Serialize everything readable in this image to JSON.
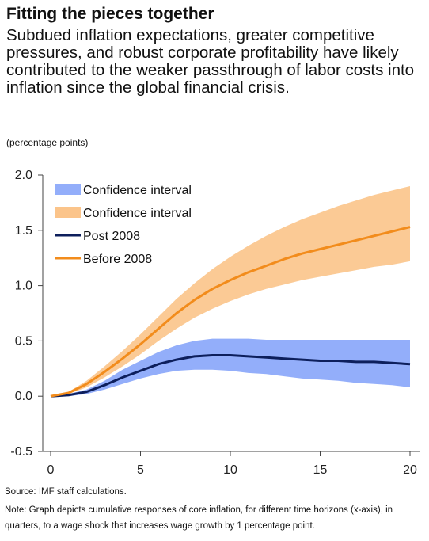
{
  "header": {
    "title": "Fitting the pieces together",
    "subtitle": "Subdued inflation expectations, greater competitive pressures, and robust corporate profitability have likely contributed to the weaker passthrough of labor costs into inflation since the global financial crisis."
  },
  "units_label": "(percentage points)",
  "footer": {
    "source": "Source: IMF staff calculations.",
    "note": "Note: Graph depicts cumulative responses of core inflation, for different time horizons (x-axis), in quarters, to a wage shock that increases wage growth by 1 percentage point."
  },
  "chart_data": {
    "type": "line",
    "x": [
      0,
      1,
      2,
      3,
      4,
      5,
      6,
      7,
      8,
      9,
      10,
      11,
      12,
      13,
      14,
      15,
      16,
      17,
      18,
      19,
      20
    ],
    "xlim": [
      0,
      20
    ],
    "ylim": [
      -0.5,
      2.0
    ],
    "xticks": [
      0,
      5,
      10,
      15,
      20
    ],
    "yticks": [
      -0.5,
      0.0,
      0.5,
      1.0,
      1.5,
      2.0
    ],
    "ytick_labels": [
      "-0.5",
      "0.0",
      "0.5",
      "1.0",
      "1.5",
      "2.0"
    ],
    "grid": false,
    "legend_position": "top-left",
    "series": [
      {
        "name": "Post 2008",
        "kind": "line",
        "color": "#0d1f5c",
        "values": [
          0.0,
          0.01,
          0.04,
          0.1,
          0.17,
          0.23,
          0.29,
          0.33,
          0.36,
          0.37,
          0.37,
          0.36,
          0.35,
          0.34,
          0.33,
          0.32,
          0.32,
          0.31,
          0.31,
          0.3,
          0.29
        ]
      },
      {
        "name": "Before 2008",
        "kind": "line",
        "color": "#f28c1c",
        "values": [
          0.0,
          0.03,
          0.11,
          0.22,
          0.34,
          0.47,
          0.61,
          0.75,
          0.87,
          0.97,
          1.05,
          1.12,
          1.18,
          1.24,
          1.29,
          1.33,
          1.37,
          1.41,
          1.45,
          1.49,
          1.53
        ]
      }
    ],
    "bands": [
      {
        "name": "Confidence interval",
        "color": "#93aefa",
        "lower": [
          0.0,
          0.0,
          0.02,
          0.06,
          0.11,
          0.16,
          0.2,
          0.23,
          0.24,
          0.24,
          0.23,
          0.21,
          0.2,
          0.18,
          0.16,
          0.15,
          0.14,
          0.12,
          0.11,
          0.1,
          0.08
        ],
        "upper": [
          0.0,
          0.02,
          0.06,
          0.14,
          0.24,
          0.32,
          0.4,
          0.46,
          0.5,
          0.52,
          0.52,
          0.52,
          0.51,
          0.51,
          0.51,
          0.51,
          0.51,
          0.51,
          0.51,
          0.51,
          0.51
        ]
      },
      {
        "name": "Confidence interval",
        "color": "#fbc48a",
        "lower": [
          0.0,
          0.02,
          0.08,
          0.17,
          0.27,
          0.38,
          0.5,
          0.61,
          0.71,
          0.79,
          0.86,
          0.92,
          0.97,
          1.01,
          1.05,
          1.08,
          1.11,
          1.14,
          1.17,
          1.19,
          1.22
        ],
        "upper": [
          0.0,
          0.04,
          0.14,
          0.27,
          0.41,
          0.56,
          0.72,
          0.88,
          1.02,
          1.15,
          1.26,
          1.36,
          1.45,
          1.53,
          1.6,
          1.66,
          1.72,
          1.77,
          1.82,
          1.86,
          1.9
        ]
      }
    ]
  }
}
